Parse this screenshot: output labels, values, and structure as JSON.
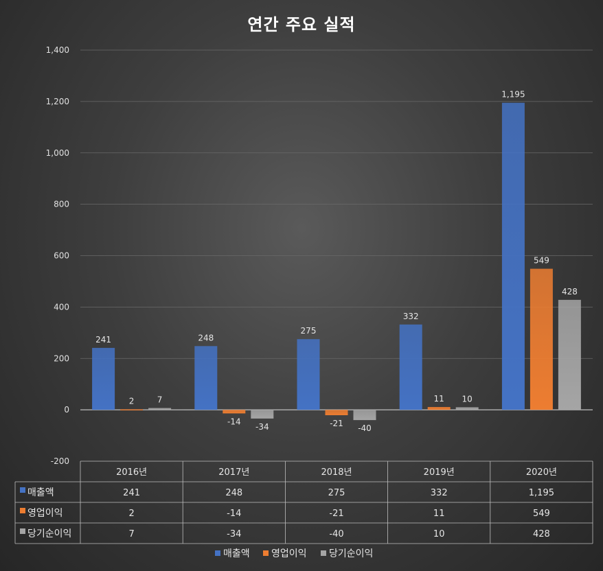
{
  "chart_data": {
    "type": "bar",
    "title": "연간 주요 실적",
    "categories": [
      "2016년",
      "2017년",
      "2018년",
      "2019년",
      "2020년"
    ],
    "series": [
      {
        "name": "매출액",
        "values": [
          241,
          248,
          275,
          332,
          1195
        ],
        "labels": [
          "241",
          "248",
          "275",
          "332",
          "1,195"
        ],
        "color": "#4472C4"
      },
      {
        "name": "영업이익",
        "values": [
          2,
          -14,
          -21,
          11,
          549
        ],
        "labels": [
          "2",
          "-14",
          "-21",
          "11",
          "549"
        ],
        "color": "#ED7D31"
      },
      {
        "name": "당기순이익",
        "values": [
          7,
          -34,
          -40,
          10,
          428
        ],
        "labels": [
          "7",
          "-34",
          "-40",
          "10",
          "428"
        ],
        "color": "#A5A5A5"
      }
    ],
    "ylim": [
      -200,
      1400
    ],
    "yticks": [
      {
        "value": -200,
        "label": "-200"
      },
      {
        "value": 0,
        "label": "0"
      },
      {
        "value": 200,
        "label": "200"
      },
      {
        "value": 400,
        "label": "400"
      },
      {
        "value": 600,
        "label": "600"
      },
      {
        "value": 800,
        "label": "800"
      },
      {
        "value": 1000,
        "label": "1,000"
      },
      {
        "value": 1200,
        "label": "1,200"
      },
      {
        "value": 1400,
        "label": "1,400"
      }
    ],
    "grid": true,
    "legend": "bottom",
    "data_table": true
  }
}
